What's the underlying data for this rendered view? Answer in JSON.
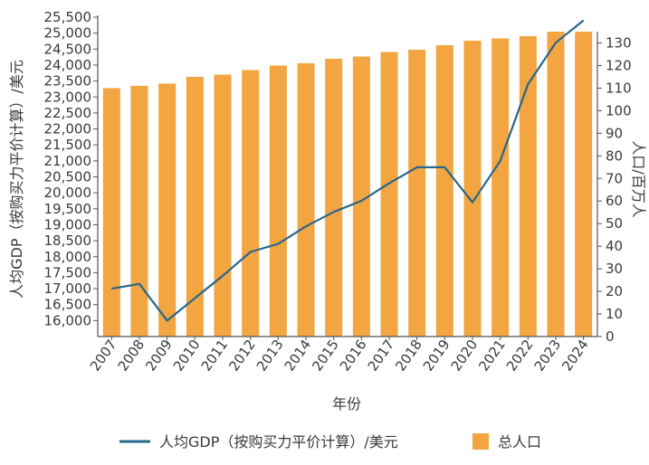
{
  "chart_data": {
    "type": "bar+line",
    "categories": [
      "2007",
      "2008",
      "2009",
      "2010",
      "2011",
      "2012",
      "2013",
      "2014",
      "2015",
      "2016",
      "2017",
      "2018",
      "2019",
      "2020",
      "2021",
      "2022",
      "2023",
      "2024"
    ],
    "series": [
      {
        "name": "总人口",
        "type": "bar",
        "axis": "right",
        "values": [
          110,
          111,
          112,
          115,
          116,
          118,
          120,
          121,
          123,
          124,
          126,
          127,
          129,
          131,
          132,
          133,
          135,
          135
        ]
      },
      {
        "name": "人均GDP（按购买力平价计算）/美元",
        "type": "line",
        "axis": "left",
        "values": [
          17000,
          17150,
          16000,
          16700,
          17400,
          18150,
          18400,
          18950,
          19400,
          19750,
          20300,
          20800,
          20800,
          19700,
          21000,
          23400,
          24700,
          25400
        ]
      }
    ],
    "xlabel": "年份",
    "ylabel_left": "人均GDP（按购买力平价计算）/美元",
    "ylabel_right": "人口/百万人",
    "left_axis": {
      "min": 15500,
      "max": 25500,
      "ticks": [
        16000,
        16500,
        17000,
        17500,
        18000,
        18500,
        19000,
        19500,
        20000,
        20500,
        21000,
        21500,
        22000,
        22500,
        23000,
        23500,
        24000,
        24500,
        25000,
        25500
      ]
    },
    "right_axis": {
      "min": 0,
      "max": 135,
      "ticks": [
        0,
        10,
        20,
        30,
        40,
        50,
        60,
        70,
        80,
        90,
        100,
        110,
        120,
        130
      ]
    },
    "colors": {
      "bar": "#f2a541",
      "line": "#27678c",
      "axis": "#555555"
    },
    "legend": {
      "position": "bottom",
      "line_label": "人均GDP（按购买力平价计算）/美元",
      "bar_label": "总人口"
    }
  }
}
